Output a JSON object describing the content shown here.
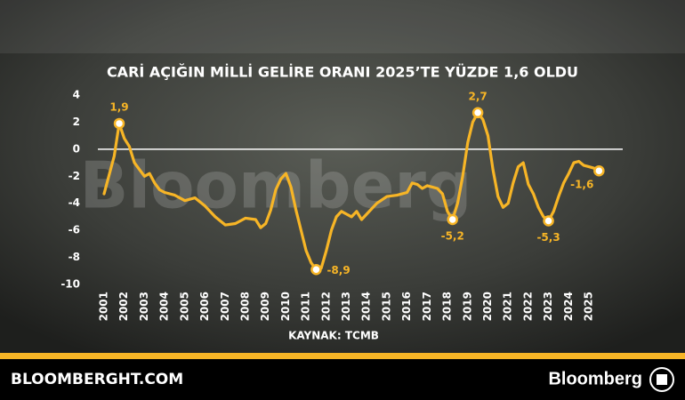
{
  "chart_data": {
    "type": "line",
    "title": "CARİ AÇIĞIN MİLLİ GELİRE ORANI 2025’TE YÜZDE 1,6 OLDU",
    "source": "KAYNAK: TCMB",
    "watermark": "Bloomberg",
    "footer_left": "BLOOMBERGHT.COM",
    "footer_right": "Bloomberg",
    "color": "#f7b526",
    "zero_line": true,
    "x": [
      2001.0,
      2001.5,
      2001.75,
      2002.0,
      2002.25,
      2002.5,
      2002.75,
      2003.0,
      2003.25,
      2003.5,
      2003.75,
      2004.0,
      2004.5,
      2005.0,
      2005.5,
      2006.0,
      2006.5,
      2007.0,
      2007.5,
      2008.0,
      2008.5,
      2008.75,
      2009.0,
      2009.25,
      2009.5,
      2009.75,
      2010.0,
      2010.25,
      2010.5,
      2010.75,
      2011.0,
      2011.25,
      2011.5,
      2011.75,
      2012.0,
      2012.25,
      2012.5,
      2012.75,
      2013.0,
      2013.25,
      2013.5,
      2013.75,
      2014.0,
      2014.5,
      2015.0,
      2015.5,
      2016.0,
      2016.25,
      2016.5,
      2016.75,
      2017.0,
      2017.5,
      2017.75,
      2018.0,
      2018.25,
      2018.5,
      2018.75,
      2019.0,
      2019.25,
      2019.5,
      2019.75,
      2020.0,
      2020.25,
      2020.5,
      2020.75,
      2021.0,
      2021.25,
      2021.5,
      2021.75,
      2022.0,
      2022.25,
      2022.5,
      2022.75,
      2023.0,
      2023.25,
      2023.5,
      2023.75,
      2024.0,
      2024.25,
      2024.5,
      2024.75,
      2025.0,
      2025.25,
      2025.5
    ],
    "values": [
      -3.3,
      -0.5,
      1.9,
      0.8,
      0.2,
      -1.0,
      -1.5,
      -2.0,
      -1.8,
      -2.5,
      -3.0,
      -3.2,
      -3.4,
      -3.8,
      -3.6,
      -4.2,
      -5.0,
      -5.6,
      -5.5,
      -5.1,
      -5.2,
      -5.8,
      -5.5,
      -4.5,
      -3.0,
      -2.2,
      -1.8,
      -2.8,
      -4.5,
      -6.0,
      -7.5,
      -8.4,
      -8.9,
      -8.8,
      -7.5,
      -6.0,
      -5.0,
      -4.6,
      -4.8,
      -5.0,
      -4.6,
      -5.2,
      -4.8,
      -4.0,
      -3.5,
      -3.4,
      -3.2,
      -2.5,
      -2.6,
      -2.9,
      -2.7,
      -2.9,
      -3.3,
      -4.6,
      -5.2,
      -4.0,
      -2.0,
      0.5,
      2.0,
      2.7,
      2.2,
      1.0,
      -1.5,
      -3.5,
      -4.3,
      -4.0,
      -2.5,
      -1.3,
      -1.0,
      -2.6,
      -3.3,
      -4.3,
      -5.0,
      -5.3,
      -4.6,
      -3.5,
      -2.5,
      -1.8,
      -1.0,
      -0.9,
      -1.2,
      -1.3,
      -1.4,
      -1.6
    ],
    "xlim": [
      2001,
      2025
    ],
    "xticks": [
      2001,
      2002,
      2003,
      2004,
      2005,
      2006,
      2007,
      2008,
      2009,
      2010,
      2011,
      2012,
      2013,
      2014,
      2015,
      2016,
      2017,
      2018,
      2019,
      2020,
      2021,
      2022,
      2023,
      2024,
      2025
    ],
    "ylim": [
      -10,
      4
    ],
    "yticks": [
      4,
      2,
      0,
      -2,
      -4,
      -6,
      -8,
      -10
    ],
    "annotations": [
      {
        "x": 2001.75,
        "y": 1.9,
        "label": "1,9"
      },
      {
        "x": 2011.5,
        "y": -8.9,
        "label": "-8,9"
      },
      {
        "x": 2018.25,
        "y": -5.2,
        "label": "-5,2"
      },
      {
        "x": 2019.5,
        "y": 2.7,
        "label": "2,7"
      },
      {
        "x": 2023.0,
        "y": -5.3,
        "label": "-5,3"
      },
      {
        "x": 2025.5,
        "y": -1.6,
        "label": "-1,6"
      }
    ]
  }
}
